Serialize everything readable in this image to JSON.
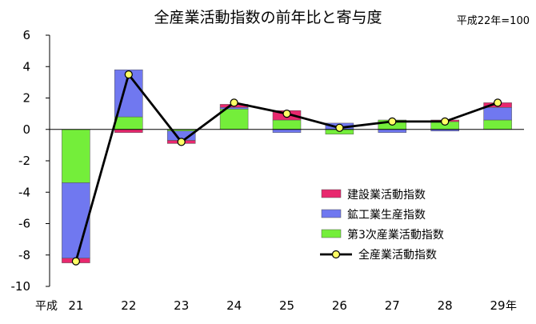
{
  "chart_data": {
    "type": "bar",
    "subtype": "stacked-bar-with-line",
    "title": "全産業活動指数の前年比と寄与度",
    "note": "平成22年=100",
    "x_prefix": "平成",
    "x_suffix": "年",
    "categories": [
      "21",
      "22",
      "23",
      "24",
      "25",
      "26",
      "27",
      "28",
      "29"
    ],
    "ylim": [
      -10,
      6
    ],
    "yticks": [
      6,
      4,
      2,
      0,
      -2,
      -4,
      -6,
      -8,
      -10
    ],
    "grid": false,
    "legend_position": "bottom-right",
    "bar_series": [
      {
        "name": "建設業活動指数",
        "color": "#e8286e",
        "values": [
          -0.3,
          -0.2,
          -0.2,
          0.2,
          0.6,
          0.0,
          0.0,
          0.1,
          0.3
        ]
      },
      {
        "name": "鉱工業生産指数",
        "color": "#7078f0",
        "values": [
          -4.8,
          3.0,
          -0.6,
          0.1,
          -0.2,
          0.4,
          -0.2,
          -0.1,
          0.8
        ]
      },
      {
        "name": "第3次産業活動指数",
        "color": "#74ee3a",
        "values": [
          -3.4,
          0.8,
          -0.1,
          1.3,
          0.6,
          -0.3,
          0.6,
          0.5,
          0.6
        ]
      }
    ],
    "line_series": {
      "name": "全産業活動指数",
      "color": "#000000",
      "marker_color": "#ffff66",
      "values": [
        -8.4,
        3.5,
        -0.8,
        1.7,
        1.0,
        0.1,
        0.5,
        0.5,
        1.7
      ]
    }
  }
}
